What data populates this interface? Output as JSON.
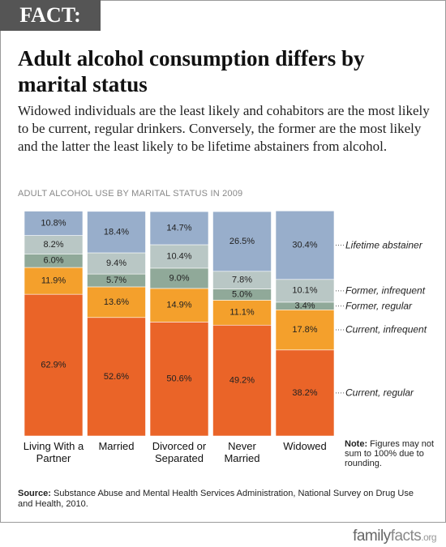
{
  "header": {
    "badge": "FACT:"
  },
  "chart_data": {
    "type": "stacked_bar",
    "title": "Adult alcohol consumption differs by marital status",
    "subtitle": "Widowed individuals are the least likely and cohabitors are the most likely to be current, regular drinkers. Conversely, the former are the most likely and the latter the least likely to be lifetime abstainers from alcohol.",
    "chart_heading": "ADULT ALCOHOL USE BY MARITAL STATUS IN 2009",
    "categories": [
      "Living With a Partner",
      "Married",
      "Divorced or Separated",
      "Never Married",
      "Widowed"
    ],
    "ylim": [
      0,
      100
    ],
    "series": [
      {
        "name": "Current, regular",
        "color": "#ea6428",
        "values": [
          62.9,
          52.6,
          50.6,
          49.2,
          38.2
        ],
        "value_labels": [
          "62.9%",
          "52.6%",
          "50.6%",
          "49.2%",
          "38.2%"
        ]
      },
      {
        "name": "Current, infrequent",
        "color": "#f4a02c",
        "values": [
          11.9,
          13.6,
          14.9,
          11.1,
          17.8
        ],
        "value_labels": [
          "11.9%",
          "13.6%",
          "14.9%",
          "11.1%",
          "17.8%"
        ]
      },
      {
        "name": "Former, regular",
        "color": "#90a999",
        "values": [
          6.0,
          5.7,
          9.0,
          5.0,
          3.4
        ],
        "value_labels": [
          "6.0%",
          "5.7%",
          "9.0%",
          "5.0%",
          "3.4%"
        ]
      },
      {
        "name": "Former, infrequent",
        "color": "#b9c7c5",
        "values": [
          8.2,
          9.4,
          10.4,
          7.8,
          10.1
        ],
        "value_labels": [
          "8.2%",
          "9.4%",
          "10.4%",
          "7.8%",
          "10.1%"
        ]
      },
      {
        "name": "Lifetime abstainer",
        "color": "#98aecb",
        "values": [
          10.8,
          18.4,
          14.7,
          26.5,
          30.4
        ],
        "value_labels": [
          "10.8%",
          "18.4%",
          "14.7%",
          "26.5%",
          "30.4%"
        ]
      }
    ],
    "note": {
      "label": "Note:",
      "text": "Figures may not sum to 100% due to rounding."
    },
    "source": {
      "label": "Source:",
      "text": "Substance Abuse and Mental Health Services Administration, National Survey on Drug Use and Health, 2010."
    }
  },
  "footer": {
    "logo": [
      "family",
      "facts",
      ".org"
    ]
  }
}
